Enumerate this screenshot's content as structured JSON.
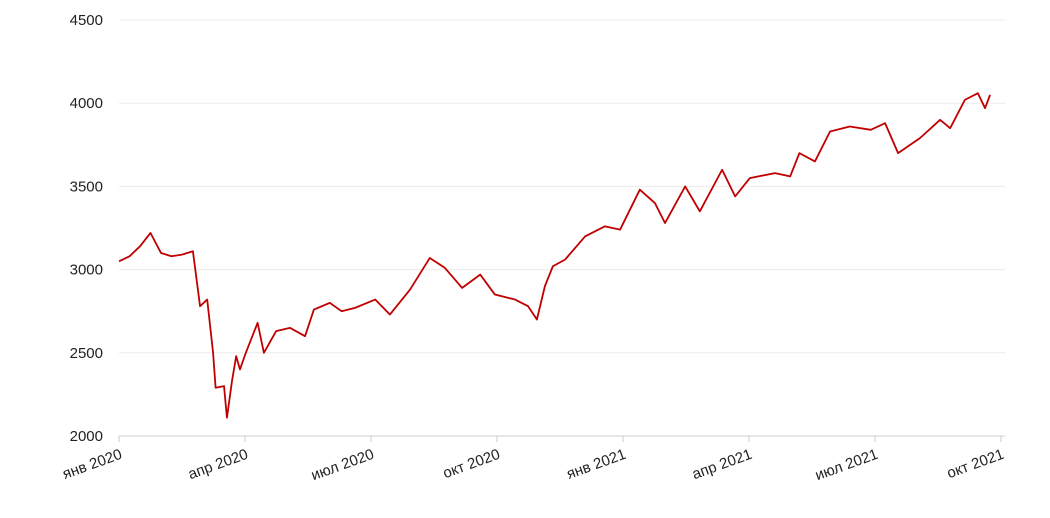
{
  "chart_data": {
    "type": "line",
    "x": [
      0,
      0.25,
      0.5,
      0.75,
      1.0,
      1.25,
      1.5,
      1.76,
      1.93,
      2.1,
      2.24,
      2.3,
      2.5,
      2.57,
      2.69,
      2.79,
      2.88,
      3.02,
      3.3,
      3.45,
      3.74,
      4.07,
      4.43,
      4.64,
      5.02,
      5.3,
      5.62,
      6.1,
      6.45,
      6.93,
      7.4,
      7.76,
      8.17,
      8.6,
      8.95,
      9.43,
      9.74,
      9.95,
      10.14,
      10.33,
      10.62,
      11.1,
      11.57,
      11.93,
      12.4,
      12.76,
      13.0,
      13.48,
      13.83,
      14.36,
      14.67,
      15.02,
      15.62,
      15.98,
      16.2,
      16.57,
      16.93,
      17.4,
      17.9,
      18.24,
      18.55,
      19.07,
      19.55,
      19.79,
      20.14,
      20.45,
      20.62,
      20.74
    ],
    "series": [
      {
        "color": "#c00000",
        "values": [
          3050,
          3080,
          3140,
          3220,
          3100,
          3080,
          3090,
          3110,
          2780,
          2820,
          2500,
          2290,
          2300,
          2110,
          2330,
          2480,
          2400,
          2500,
          2680,
          2500,
          2630,
          2650,
          2600,
          2760,
          2800,
          2750,
          2770,
          2820,
          2730,
          2880,
          3070,
          3010,
          2890,
          2970,
          2850,
          2820,
          2780,
          2700,
          2900,
          3020,
          3060,
          3200,
          3260,
          3240,
          3480,
          3400,
          3280,
          3500,
          3350,
          3600,
          3440,
          3550,
          3580,
          3560,
          3700,
          3650,
          3830,
          3860,
          3840,
          3880,
          3700,
          3790,
          3900,
          3850,
          4020,
          4060,
          3970,
          4050
        ]
      }
    ],
    "xlim": [
      0,
      21.1
    ],
    "xticks": [
      {
        "value": 0,
        "label": "янв 2020"
      },
      {
        "value": 3,
        "label": "апр 2020"
      },
      {
        "value": 6,
        "label": "июл 2020"
      },
      {
        "value": 9,
        "label": "окт 2020"
      },
      {
        "value": 12,
        "label": "янв 2021"
      },
      {
        "value": 15,
        "label": "апр 2021"
      },
      {
        "value": 18,
        "label": "июл 2021"
      },
      {
        "value": 21,
        "label": "окт 2021"
      }
    ],
    "ylim": [
      2000,
      4500
    ],
    "yticks": [
      2000,
      2500,
      3000,
      3500,
      4000,
      4500
    ],
    "grid": true
  }
}
